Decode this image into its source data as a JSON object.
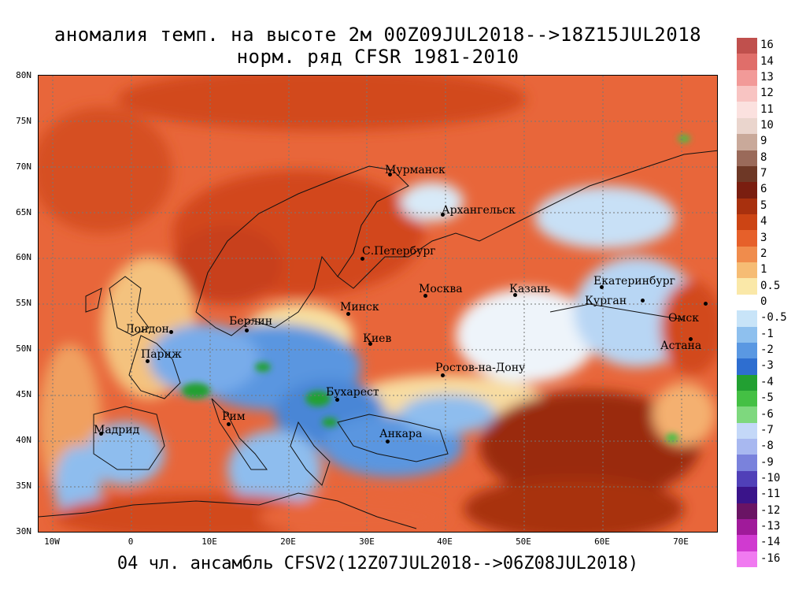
{
  "title": {
    "line1": "аномалия темп. на высоте 2м 00Z09JUL2018-->18Z15JUL2018",
    "line2": "норм. ряд CFSR 1981-2010"
  },
  "footer": "04 чл. ансамбль CFSV2(12Z07JUL2018-->06Z08JUL2018)",
  "axes": {
    "lat_labels": [
      "80N",
      "75N",
      "70N",
      "65N",
      "60N",
      "55N",
      "50N",
      "45N",
      "40N",
      "35N",
      "30N"
    ],
    "lon_labels": [
      "10W",
      "0",
      "10E",
      "20E",
      "30E",
      "40E",
      "50E",
      "60E",
      "70E"
    ]
  },
  "cities": [
    {
      "name": "Мурманск"
    },
    {
      "name": "Архангельск"
    },
    {
      "name": "С.Петербург"
    },
    {
      "name": "Москва"
    },
    {
      "name": "Казань"
    },
    {
      "name": "Екатеринбург"
    },
    {
      "name": "Курган"
    },
    {
      "name": "Омск"
    },
    {
      "name": "Астана"
    },
    {
      "name": "Минск"
    },
    {
      "name": "Берлин"
    },
    {
      "name": "Лондон"
    },
    {
      "name": "Париж"
    },
    {
      "name": "Киев"
    },
    {
      "name": "Ростов-на-Дону"
    },
    {
      "name": "Бухарест"
    },
    {
      "name": "Рим"
    },
    {
      "name": "Мадрид"
    },
    {
      "name": "Анкара"
    }
  ],
  "colorbar": {
    "labels": [
      "16",
      "14",
      "13",
      "12",
      "11",
      "10",
      "9",
      "8",
      "7",
      "6",
      "5",
      "4",
      "3",
      "2",
      "1",
      "0.5",
      "0",
      "-0.5",
      "-1",
      "-2",
      "-3",
      "-4",
      "-5",
      "-6",
      "-7",
      "-8",
      "-9",
      "-10",
      "-11",
      "-12",
      "-13",
      "-14",
      "-16"
    ],
    "colors": [
      "#c0504d",
      "#e06e6a",
      "#f29a98",
      "#f8c4c2",
      "#fbe1df",
      "#ead5cd",
      "#c9a99a",
      "#9a6a5a",
      "#6e3826",
      "#7a1e10",
      "#a8300e",
      "#cc4414",
      "#e6602a",
      "#f08c4c",
      "#f6bc74",
      "#fae8a8",
      "#ffffff",
      "#c8e4f8",
      "#8ec0ee",
      "#5a98e2",
      "#2e6ed0",
      "#22a032",
      "#44c044",
      "#7ed87e",
      "#c4d8f8",
      "#a8b8f0",
      "#7a82dc",
      "#5040b8",
      "#3a148a",
      "#6a1464",
      "#a01a9a",
      "#d03ad0",
      "#f07af0"
    ]
  }
}
